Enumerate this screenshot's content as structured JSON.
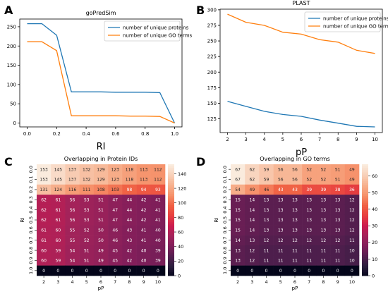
{
  "chart_data": [
    {
      "panel": "A",
      "type": "line",
      "title": "goPredSim",
      "xlabel": "RI",
      "ylabel": "",
      "xlim": [
        -0.05,
        1.05
      ],
      "ylim": [
        -10,
        270
      ],
      "xticks": [
        0.0,
        0.2,
        0.4,
        0.6,
        0.8,
        1.0
      ],
      "yticks": [
        0,
        50,
        100,
        150,
        200,
        250
      ],
      "x": [
        0.0,
        0.1,
        0.2,
        0.3,
        0.4,
        0.5,
        0.6,
        0.7,
        0.8,
        0.9,
        1.0
      ],
      "series": [
        {
          "name": "number of unique proteins",
          "color": "#1f77b4",
          "values": [
            258,
            258,
            228,
            81,
            81,
            81,
            80,
            80,
            80,
            79,
            0
          ]
        },
        {
          "name": "number of unique GO terms",
          "color": "#ff7f0e",
          "values": [
            211,
            211,
            188,
            19,
            19,
            19,
            19,
            18,
            18,
            17,
            0
          ]
        }
      ],
      "legend": "top-right",
      "grid": false
    },
    {
      "panel": "B",
      "type": "line",
      "title": "PLAST",
      "xlabel": "pP",
      "ylabel": "",
      "xlim": [
        1.6,
        10.4
      ],
      "ylim": [
        103,
        301
      ],
      "xticks": [
        2,
        3,
        4,
        5,
        6,
        7,
        8,
        9,
        10
      ],
      "yticks": [
        125,
        150,
        175,
        200,
        225,
        250,
        275,
        300
      ],
      "x": [
        2,
        3,
        4,
        5,
        6,
        7,
        8,
        9,
        10
      ],
      "series": [
        {
          "name": "number of unique proteins",
          "color": "#1f77b4",
          "values": [
            153,
            145,
            137,
            132,
            129,
            123,
            118,
            113,
            112
          ]
        },
        {
          "name": "number of unique GO terms",
          "color": "#ff7f0e",
          "values": [
            293,
            280,
            275,
            264,
            261,
            252,
            248,
            235,
            230
          ]
        }
      ],
      "legend": "top-right",
      "grid": false
    },
    {
      "panel": "C",
      "type": "heatmap",
      "title": "Overlapping in Protein IDs",
      "xlabel": "pP",
      "ylabel": "RI",
      "x": [
        "2",
        "3",
        "4",
        "5",
        "6",
        "7",
        "8",
        "9",
        "10"
      ],
      "y": [
        "0.0",
        "0.1",
        "0.2",
        "0.3",
        "0.4",
        "0.5",
        "0.6",
        "0.7",
        "0.8",
        "0.9",
        "1.0"
      ],
      "values": [
        [
          153,
          145,
          137,
          132,
          129,
          123,
          118,
          113,
          112
        ],
        [
          153,
          145,
          137,
          132,
          129,
          123,
          118,
          113,
          112
        ],
        [
          131,
          124,
          116,
          111,
          108,
          103,
          98,
          94,
          93
        ],
        [
          62,
          61,
          56,
          53,
          51,
          47,
          44,
          42,
          41
        ],
        [
          62,
          61,
          56,
          53,
          51,
          47,
          44,
          42,
          41
        ],
        [
          62,
          61,
          56,
          53,
          51,
          47,
          44,
          42,
          41
        ],
        [
          61,
          60,
          55,
          52,
          50,
          46,
          43,
          41,
          40
        ],
        [
          61,
          60,
          55,
          52,
          50,
          46,
          43,
          41,
          40
        ],
        [
          60,
          59,
          54,
          51,
          49,
          45,
          42,
          40,
          39
        ],
        [
          60,
          59,
          54,
          51,
          49,
          45,
          42,
          40,
          39
        ],
        [
          0,
          0,
          0,
          0,
          0,
          0,
          0,
          0,
          0
        ]
      ],
      "vmin": 0,
      "vmax": 153,
      "colorbar_ticks": [
        0,
        20,
        40,
        60,
        80,
        100,
        120,
        140
      ]
    },
    {
      "panel": "D",
      "type": "heatmap",
      "title": "Overlapping in GO terms",
      "xlabel": "pP",
      "ylabel": "RI",
      "x": [
        "2",
        "3",
        "4",
        "5",
        "6",
        "7",
        "8",
        "9",
        "10"
      ],
      "y": [
        "0.0",
        "0.1",
        "0.2",
        "0.3",
        "0.4",
        "0.5",
        "0.6",
        "0.7",
        "0.8",
        "0.9",
        "1.0"
      ],
      "values": [
        [
          67,
          62,
          59,
          56,
          56,
          52,
          52,
          51,
          49
        ],
        [
          67,
          62,
          59,
          56,
          56,
          52,
          52,
          51,
          49
        ],
        [
          54,
          49,
          46,
          43,
          43,
          39,
          39,
          38,
          36
        ],
        [
          15,
          14,
          13,
          13,
          13,
          13,
          13,
          13,
          12
        ],
        [
          15,
          14,
          13,
          13,
          13,
          13,
          13,
          13,
          12
        ],
        [
          15,
          14,
          13,
          13,
          13,
          13,
          13,
          13,
          12
        ],
        [
          15,
          14,
          13,
          13,
          13,
          13,
          13,
          13,
          12
        ],
        [
          14,
          13,
          12,
          12,
          12,
          12,
          12,
          12,
          11
        ],
        [
          13,
          12,
          11,
          11,
          11,
          11,
          11,
          11,
          10
        ],
        [
          13,
          12,
          11,
          11,
          11,
          11,
          11,
          11,
          10
        ],
        [
          0,
          0,
          0,
          0,
          0,
          0,
          0,
          0,
          0
        ]
      ],
      "vmin": 0,
      "vmax": 67,
      "colorbar_ticks": [
        0,
        10,
        20,
        30,
        40,
        50,
        60
      ]
    }
  ],
  "colormap": [
    "#03051a",
    "#2c1e3e",
    "#551e4f",
    "#811e5a",
    "#a3235a",
    "#cb1b4f",
    "#e83f3f",
    "#f06043",
    "#f6916a",
    "#f7b18e",
    "#f8d0b8",
    "#faebdd"
  ]
}
